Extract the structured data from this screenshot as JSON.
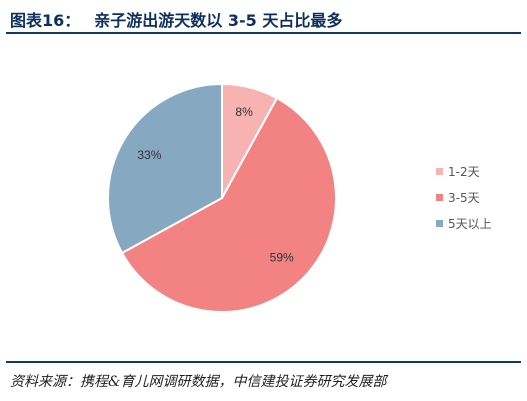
{
  "header": {
    "figure_number": "图表16：",
    "title": "亲子游出游天数以 3-5 天占比最多"
  },
  "source": "资料来源：携程&育儿网调研数据，中信建投证券研究发展部",
  "chart_data": {
    "type": "pie",
    "slices": [
      {
        "name": "1-2天",
        "value": 8,
        "label": "8%",
        "color": "#f7b2b2"
      },
      {
        "name": "3-5天",
        "value": 59,
        "label": "59%",
        "color": "#f38383"
      },
      {
        "name": "5天以上",
        "value": 33,
        "label": "33%",
        "color": "#86a8c0"
      }
    ],
    "legend_position": "right",
    "start_angle": "12 o'clock, clockwise"
  }
}
